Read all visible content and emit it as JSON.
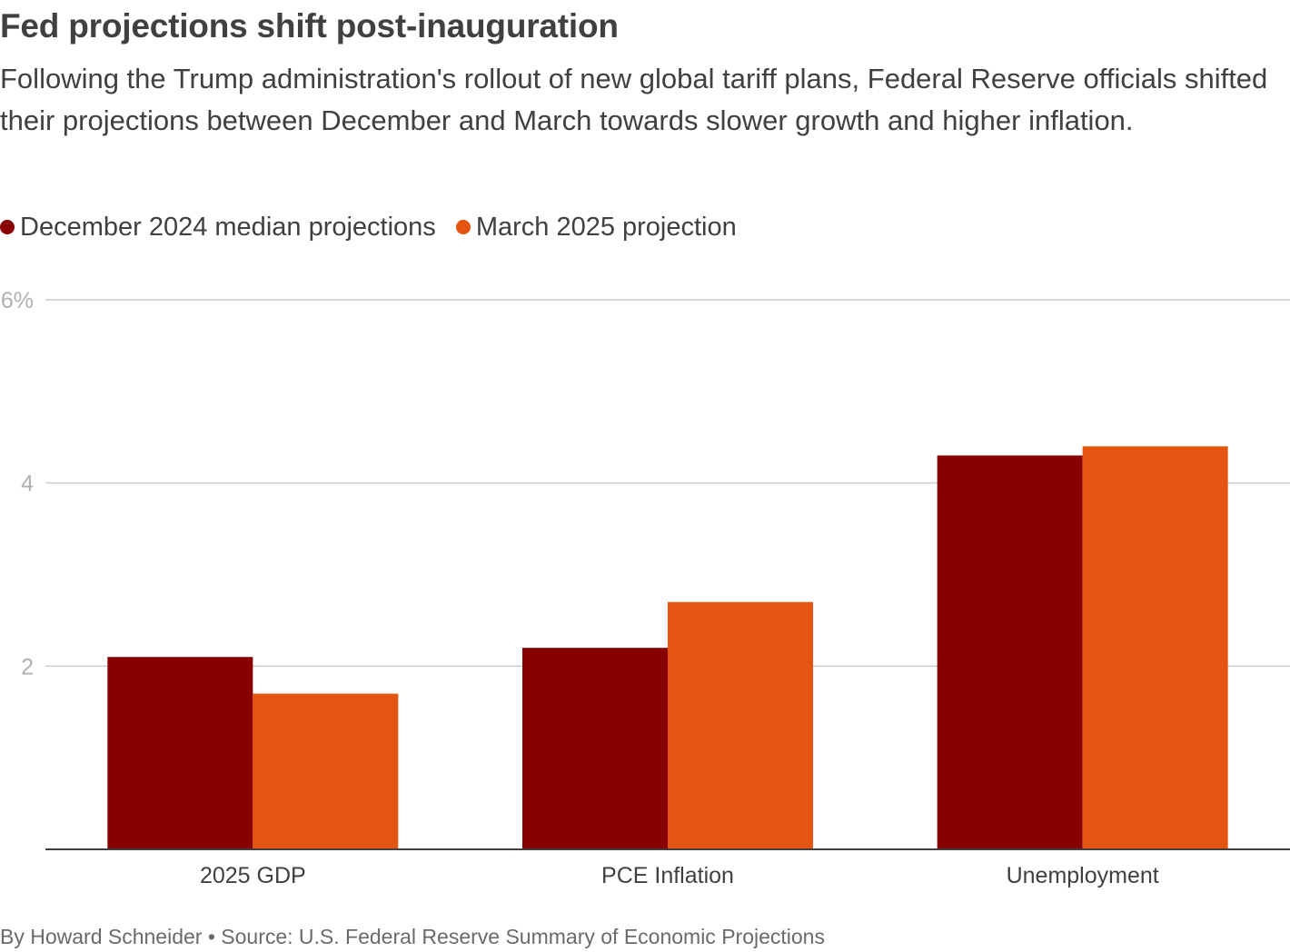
{
  "chart_data": {
    "type": "bar",
    "title": "Fed projections shift post-inauguration",
    "subtitle": "Following the Trump administration's rollout of new global tariff plans, Federal Reserve officials shifted their projections between December and March towards slower growth and higher inflation.",
    "categories": [
      "2025 GDP",
      "PCE Inflation",
      "Unemployment"
    ],
    "series": [
      {
        "name": "December 2024 median projections",
        "color": "#880000",
        "values": [
          2.1,
          2.2,
          4.3
        ]
      },
      {
        "name": "March 2025 projection",
        "color": "#e35510",
        "values": [
          1.7,
          2.7,
          4.4
        ]
      }
    ],
    "y_ticks": [
      {
        "value": 6,
        "label": "6%"
      },
      {
        "value": 4,
        "label": "4"
      },
      {
        "value": 2,
        "label": "2"
      }
    ],
    "ylim": [
      0,
      6
    ],
    "xlabel": "",
    "ylabel": "",
    "grid": true,
    "legend_position": "top-left"
  },
  "footer": {
    "byline": "By Howard Schneider • Source: U.S. Federal Reserve Summary of Economic Projections"
  }
}
